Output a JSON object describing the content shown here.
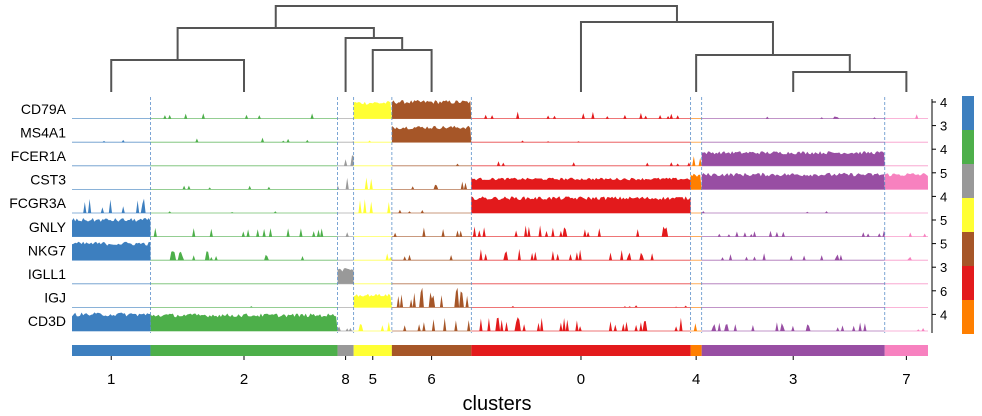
{
  "chart_data": {
    "type": "tracksplot",
    "xlabel": "clusters",
    "cluster_order": [
      "1",
      "2",
      "8",
      "5",
      "6",
      "0",
      "4",
      "3",
      "7"
    ],
    "cluster_colors": {
      "0": "#e31a1c",
      "1": "#3d7fbf",
      "2": "#4daf4a",
      "3": "#984ea3",
      "4": "#ff7f00",
      "5": "#ffff33",
      "6": "#a65628",
      "7": "#f781bf",
      "8": "#999999"
    },
    "cluster_relative_widths": [
      78,
      186,
      16,
      38,
      79,
      218,
      11,
      182,
      43
    ],
    "genes": [
      "CD79A",
      "MS4A1",
      "FCER1A",
      "CST3",
      "FCGR3A",
      "GNLY",
      "NKG7",
      "IGLL1",
      "IGJ",
      "CD3D"
    ],
    "track_max_labels": [
      "4",
      "3",
      "4",
      "5",
      "4",
      "5",
      "5",
      "3",
      "6",
      "4"
    ],
    "expression_levels": {
      "CD79A": [
        0.05,
        0.15,
        0.05,
        0.9,
        0.95,
        0.15,
        0.0,
        0.05,
        0.1
      ],
      "MS4A1": [
        0.05,
        0.1,
        0.05,
        0.05,
        0.85,
        0.05,
        0.0,
        0.0,
        0.0
      ],
      "FCER1A": [
        0.0,
        0.0,
        0.3,
        0.0,
        0.05,
        0.1,
        0.4,
        0.75,
        0.0
      ],
      "CST3": [
        0.1,
        0.1,
        0.3,
        0.3,
        0.2,
        0.6,
        0.8,
        0.85,
        0.85
      ],
      "FCGR3A": [
        0.35,
        0.05,
        0.05,
        0.3,
        0.1,
        0.85,
        0.0,
        0.05,
        0.0
      ],
      "GNLY": [
        0.95,
        0.2,
        0.1,
        0.1,
        0.2,
        0.25,
        0.05,
        0.15,
        0.1
      ],
      "NKG7": [
        0.95,
        0.2,
        0.1,
        0.15,
        0.15,
        0.25,
        0.05,
        0.15,
        0.1
      ],
      "IGLL1": [
        0.0,
        0.0,
        0.8,
        0.0,
        0.0,
        0.0,
        0.0,
        0.0,
        0.0
      ],
      "IGJ": [
        0.0,
        0.05,
        0.0,
        0.7,
        0.45,
        0.05,
        0.0,
        0.0,
        0.0
      ],
      "CD3D": [
        0.95,
        0.9,
        0.1,
        0.3,
        0.3,
        0.3,
        0.2,
        0.2,
        0.1
      ]
    },
    "legend_colors": [
      "#3d7fbf",
      "#4daf4a",
      "#999999",
      "#ffff33",
      "#a65628",
      "#e31a1c",
      "#ff7f00"
    ],
    "dendrogram_order_pairs": [
      [
        "1",
        "2"
      ],
      [
        "8",
        [
          "5",
          "6"
        ]
      ],
      [
        "0",
        [
          "4",
          [
            "3",
            "7"
          ]
        ]
      ]
    ],
    "grid": false
  }
}
